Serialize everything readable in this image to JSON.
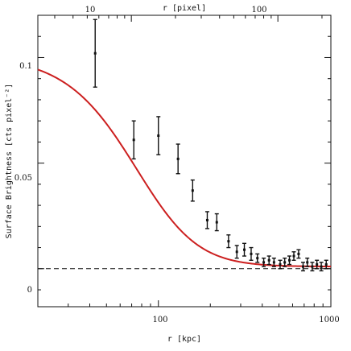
{
  "chart_data": {
    "type": "scatter",
    "title": "",
    "xlabel": "r [kpc]",
    "x2label": "r [pixel]",
    "ylabel": "Surface Brightness [cts pixel⁻²]",
    "xscale": "log",
    "xlim": [
      20,
      1000
    ],
    "x2lim": [
      2.3,
      230
    ],
    "ylim": [
      -0.018,
      0.12
    ],
    "xticks": [
      100,
      1000
    ],
    "xtick_labels": [
      "100",
      "1000"
    ],
    "x2ticks": [
      10,
      100
    ],
    "x2tick_labels": [
      "10",
      "100"
    ],
    "yticks": [
      0,
      0.05,
      0.1
    ],
    "ytick_labels": [
      "0",
      "0.05",
      "0.1"
    ],
    "grid": false,
    "baseline_y": 0,
    "series": [
      {
        "kind": "points_with_errorbars",
        "color": "#111111",
        "x": [
          43,
          72,
          100,
          130,
          158,
          192,
          218,
          255,
          285,
          315,
          345,
          375,
          408,
          438,
          468,
          508,
          540,
          575,
          610,
          650,
          690,
          730,
          780,
          830,
          880,
          940
        ],
        "y": [
          0.102,
          0.061,
          0.063,
          0.052,
          0.037,
          0.023,
          0.022,
          0.013,
          0.008,
          0.009,
          0.007,
          0.005,
          0.003,
          0.004,
          0.003,
          0.002,
          0.003,
          0.004,
          0.006,
          0.007,
          0.001,
          0.003,
          0.001,
          0.002,
          0.001,
          0.002
        ],
        "yerr": [
          0.016,
          0.009,
          0.009,
          0.007,
          0.005,
          0.004,
          0.004,
          0.003,
          0.003,
          0.003,
          0.003,
          0.002,
          0.002,
          0.002,
          0.002,
          0.002,
          0.002,
          0.002,
          0.002,
          0.002,
          0.002,
          0.002,
          0.002,
          0.002,
          0.002,
          0.002
        ]
      },
      {
        "kind": "model_curve",
        "color": "#cc1f1f",
        "model": "beta",
        "S0": 0.1,
        "rc_kpc": 95,
        "beta": 0.7,
        "bkg": 0.001
      }
    ]
  }
}
